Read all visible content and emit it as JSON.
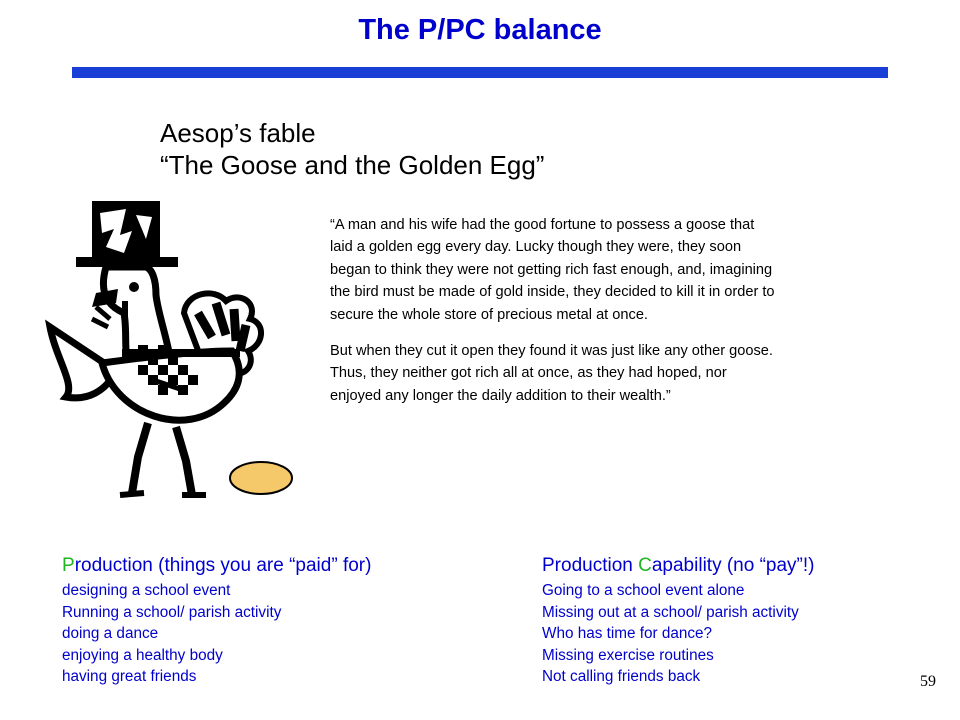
{
  "slide": {
    "title": "The P/PC balance",
    "page_number": "59"
  },
  "fable": {
    "heading_line1": "Aesop’s fable",
    "heading_line2": "“The Goose and the Golden Egg”",
    "paragraph1": "“A man and his wife had the good fortune to possess a goose that laid a golden egg every day.  Lucky though they were, they soon began to think they were not getting rich fast enough, and, imagining the bird must be made of gold inside, they decided to kill it in order to secure the whole store of precious metal at once.",
    "paragraph2": "But when they cut it open they found it was just like any other goose.  Thus, they neither got rich all at once, as they had hoped, nor enjoyed any longer the daily addition to their wealth.”"
  },
  "production": {
    "heading_first_letter": "P",
    "heading_rest": "roduction (things you are “paid” for)",
    "items": [
      "designing a school event",
      "Running a school/ parish activity",
      "doing a dance",
      "enjoying a healthy body",
      "having great friends"
    ]
  },
  "production_capability": {
    "heading_p": "Production ",
    "heading_c": "C",
    "heading_rest": "apability (no “pay”!)",
    "items": [
      "Going to a school event alone",
      "Missing out at a school/ parish activity",
      "Who has time for dance?",
      "Missing exercise routines",
      "Not calling friends back"
    ]
  },
  "colors": {
    "title": "#0000cc",
    "rule": "#1a3fd6",
    "accent_letter": "#22b422",
    "egg": "#f5c86a"
  },
  "illustration": {
    "icon": "goose-with-top-hat-icon",
    "egg_icon": "golden-egg-icon"
  }
}
